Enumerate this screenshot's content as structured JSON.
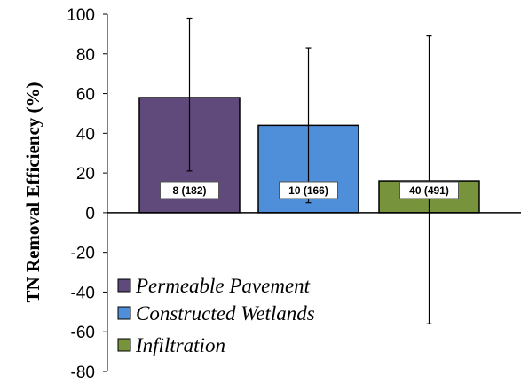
{
  "chart_data": {
    "type": "bar",
    "ylabel": "TN Removal Efficiency (%)",
    "ylim": [
      -80,
      100
    ],
    "yticks": [
      100,
      80,
      60,
      40,
      20,
      0,
      -20,
      -40,
      -60,
      -80
    ],
    "categories": [
      "Permeable Pavement",
      "Constructed Wetlands",
      "Infiltration"
    ],
    "values": [
      58,
      44,
      16
    ],
    "error_high": [
      98,
      83,
      89
    ],
    "error_low": [
      21,
      5,
      -56
    ],
    "data_labels": [
      "8 (182)",
      "10 (166)",
      "40 (491)"
    ],
    "colors": [
      "#604a7b",
      "#4f8fd9",
      "#77933c"
    ],
    "legend": [
      "Permeable Pavement",
      "Constructed Wetlands",
      "Infiltration"
    ],
    "legend_position": "bottom-left",
    "grid": false
  }
}
